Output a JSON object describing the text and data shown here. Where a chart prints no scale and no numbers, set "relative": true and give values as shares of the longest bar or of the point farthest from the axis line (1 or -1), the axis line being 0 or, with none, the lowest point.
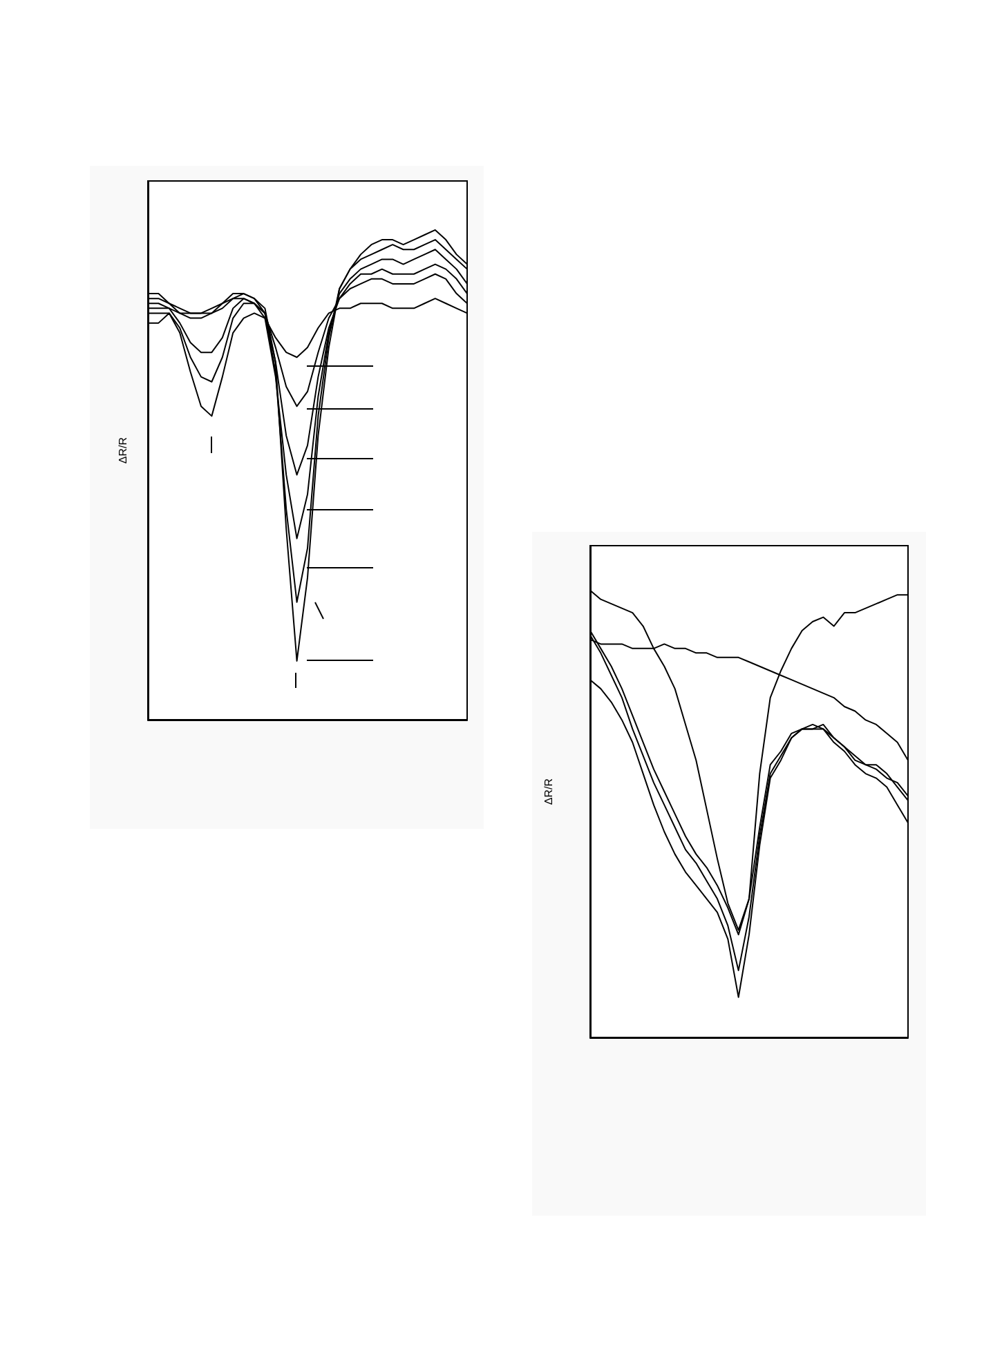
{
  "chart_data": [
    {
      "type": "line",
      "ylabel": "ΔR/R",
      "relative": true,
      "grid": false,
      "categories": [
        null,
        null,
        null,
        null,
        null,
        null,
        null,
        null,
        null,
        null,
        null,
        null,
        null,
        null,
        null,
        null,
        null,
        null,
        null,
        null,
        null,
        null,
        null,
        null,
        null,
        null,
        null,
        null,
        null,
        null,
        null
      ],
      "series": [
        {
          "color": "#000000",
          "values": [
            0.87,
            0.87,
            0.85,
            0.84,
            0.83,
            0.83,
            0.84,
            0.85,
            0.87,
            0.87,
            0.86,
            0.84,
            0.73,
            0.39,
            0.12,
            0.29,
            0.58,
            0.76,
            0.88,
            0.92,
            0.95,
            0.97,
            0.98,
            0.98,
            0.97,
            0.98,
            0.99,
            1.0,
            0.98,
            0.95,
            0.93
          ]
        },
        {
          "color": "#000000",
          "values": [
            0.86,
            0.86,
            0.85,
            0.83,
            0.83,
            0.83,
            0.83,
            0.85,
            0.86,
            0.87,
            0.86,
            0.83,
            0.71,
            0.43,
            0.24,
            0.35,
            0.62,
            0.78,
            0.88,
            0.92,
            0.94,
            0.95,
            0.96,
            0.97,
            0.96,
            0.96,
            0.97,
            0.98,
            0.96,
            0.94,
            0.92
          ]
        },
        {
          "color": "#000000",
          "values": [
            0.85,
            0.85,
            0.84,
            0.83,
            0.82,
            0.82,
            0.83,
            0.84,
            0.86,
            0.86,
            0.85,
            0.82,
            0.7,
            0.5,
            0.37,
            0.46,
            0.66,
            0.79,
            0.87,
            0.9,
            0.92,
            0.93,
            0.94,
            0.94,
            0.93,
            0.94,
            0.95,
            0.96,
            0.94,
            0.92,
            0.89
          ]
        },
        {
          "color": "#000000",
          "values": [
            0.84,
            0.84,
            0.84,
            0.81,
            0.77,
            0.75,
            0.75,
            0.78,
            0.84,
            0.86,
            0.85,
            0.83,
            0.73,
            0.58,
            0.5,
            0.56,
            0.7,
            0.8,
            0.86,
            0.89,
            0.91,
            0.91,
            0.92,
            0.91,
            0.91,
            0.91,
            0.92,
            0.93,
            0.92,
            0.9,
            0.87
          ]
        },
        {
          "color": "#000000",
          "values": [
            0.83,
            0.83,
            0.83,
            0.8,
            0.74,
            0.7,
            0.69,
            0.74,
            0.82,
            0.85,
            0.85,
            0.83,
            0.76,
            0.68,
            0.64,
            0.67,
            0.75,
            0.82,
            0.86,
            0.88,
            0.89,
            0.9,
            0.9,
            0.89,
            0.89,
            0.89,
            0.9,
            0.91,
            0.9,
            0.87,
            0.85
          ]
        },
        {
          "color": "#000000",
          "values": [
            0.81,
            0.81,
            0.83,
            0.79,
            0.71,
            0.64,
            0.62,
            0.7,
            0.79,
            0.82,
            0.83,
            0.82,
            0.78,
            0.75,
            0.74,
            0.76,
            0.8,
            0.83,
            0.84,
            0.84,
            0.85,
            0.85,
            0.85,
            0.84,
            0.84,
            0.84,
            0.85,
            0.86,
            0.85,
            0.84,
            0.83
          ]
        }
      ]
    },
    {
      "type": "line",
      "ylabel": "ΔR/R",
      "relative": true,
      "grid": false,
      "categories": [
        null,
        null,
        null,
        null,
        null,
        null,
        null,
        null,
        null,
        null,
        null,
        null,
        null,
        null,
        null,
        null,
        null,
        null,
        null,
        null,
        null,
        null,
        null,
        null,
        null,
        null,
        null,
        null,
        null,
        null,
        null
      ],
      "series": [
        {
          "color": "#000000",
          "values": [
            1.0,
            0.98,
            0.97,
            0.96,
            0.95,
            0.92,
            0.87,
            0.83,
            0.78,
            0.7,
            0.62,
            0.51,
            0.4,
            0.3,
            0.24,
            0.31,
            0.59,
            0.76,
            0.82,
            0.87,
            0.91,
            0.93,
            0.94,
            0.92,
            0.95,
            0.95,
            0.96,
            0.97,
            0.98,
            0.99,
            0.99
          ]
        },
        {
          "color": "#000000",
          "values": [
            0.89,
            0.88,
            0.88,
            0.88,
            0.87,
            0.87,
            0.87,
            0.88,
            0.87,
            0.87,
            0.86,
            0.86,
            0.85,
            0.85,
            0.85,
            0.84,
            0.83,
            0.82,
            0.81,
            0.8,
            0.79,
            0.78,
            0.77,
            0.76,
            0.74,
            0.73,
            0.71,
            0.7,
            0.68,
            0.66,
            0.62
          ]
        },
        {
          "color": "#000000",
          "values": [
            0.91,
            0.87,
            0.83,
            0.78,
            0.72,
            0.66,
            0.6,
            0.55,
            0.5,
            0.45,
            0.41,
            0.38,
            0.34,
            0.29,
            0.23,
            0.31,
            0.47,
            0.61,
            0.64,
            0.68,
            0.69,
            0.69,
            0.7,
            0.67,
            0.65,
            0.63,
            0.61,
            0.61,
            0.59,
            0.56,
            0.53
          ]
        },
        {
          "color": "#000000",
          "values": [
            0.9,
            0.86,
            0.81,
            0.76,
            0.69,
            0.63,
            0.57,
            0.52,
            0.47,
            0.42,
            0.39,
            0.35,
            0.31,
            0.25,
            0.15,
            0.27,
            0.45,
            0.59,
            0.63,
            0.67,
            0.69,
            0.69,
            0.69,
            0.67,
            0.65,
            0.62,
            0.61,
            0.6,
            0.58,
            0.57,
            0.54
          ]
        },
        {
          "color": "#000000",
          "values": [
            0.8,
            0.78,
            0.75,
            0.71,
            0.66,
            0.59,
            0.52,
            0.46,
            0.41,
            0.37,
            0.34,
            0.31,
            0.28,
            0.22,
            0.09,
            0.23,
            0.43,
            0.58,
            0.62,
            0.67,
            0.69,
            0.7,
            0.69,
            0.66,
            0.64,
            0.61,
            0.59,
            0.58,
            0.56,
            0.52,
            0.48
          ]
        }
      ]
    }
  ]
}
